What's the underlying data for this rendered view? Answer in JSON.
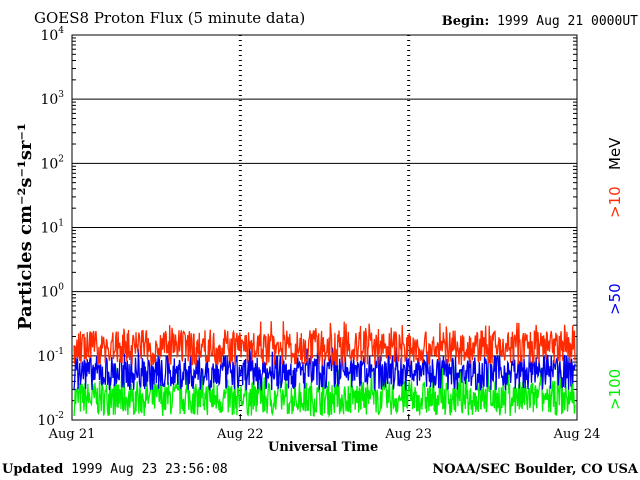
{
  "header": {
    "title": "GOES8 Proton Flux (5 minute data)",
    "begin_label": "Begin:",
    "begin_value": "1999 Aug 21 0000UT"
  },
  "footer": {
    "updated_label": "Updated",
    "updated_value": "1999 Aug 23 23:56:08",
    "org": "NOAA/SEC Boulder, CO USA"
  },
  "chart_data": {
    "type": "line",
    "title": "GOES8 Proton Flux (5 minute data)",
    "xlabel": "Universal Time",
    "ylabel": "Particles cm⁻²s⁻¹sr⁻¹",
    "y_scale": "log",
    "ylim": [
      0.01,
      10000
    ],
    "y_ticks": [
      {
        "value": 0.01,
        "base": "10",
        "exp": "-2"
      },
      {
        "value": 0.1,
        "base": "10",
        "exp": "-1"
      },
      {
        "value": 1,
        "base": "10",
        "exp": "0"
      },
      {
        "value": 10,
        "base": "10",
        "exp": "1"
      },
      {
        "value": 100,
        "base": "10",
        "exp": "2"
      },
      {
        "value": 1000,
        "base": "10",
        "exp": "3"
      },
      {
        "value": 10000,
        "base": "10",
        "exp": "4"
      }
    ],
    "x_ticks": [
      "Aug 21",
      "Aug 22",
      "Aug 23",
      "Aug 24"
    ],
    "grid": true,
    "legend_unit": "MeV",
    "series": [
      {
        "name": ">10",
        "color": "#ff2a00",
        "baseline": 0.11,
        "peak": 0.35
      },
      {
        "name": ">50",
        "color": "#0000ee",
        "baseline": 0.045,
        "peak": 0.14
      },
      {
        "name": ">100",
        "color": "#00ee00",
        "baseline": 0.018,
        "peak": 0.07
      }
    ]
  }
}
